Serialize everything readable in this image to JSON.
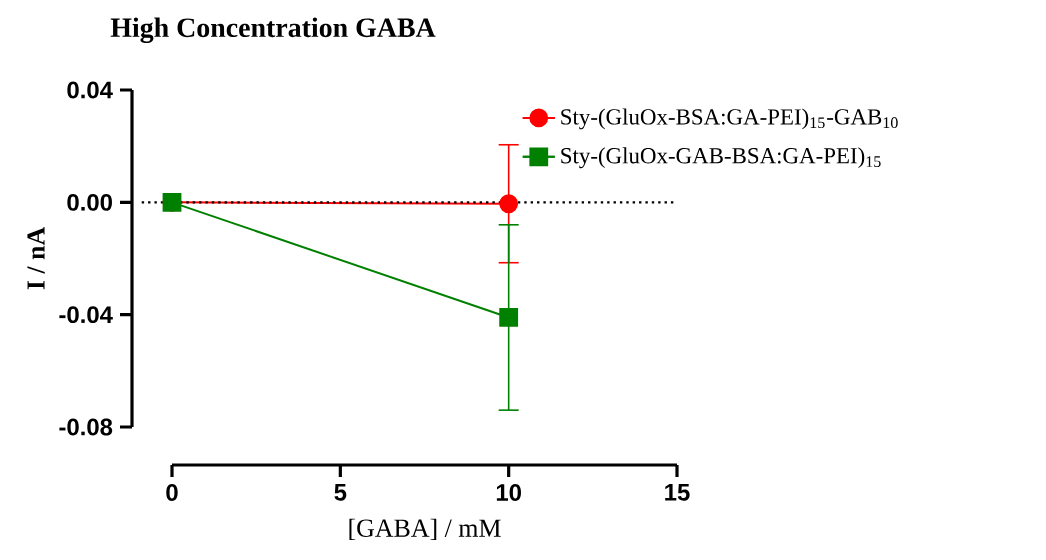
{
  "chart_data": {
    "type": "line",
    "title": "High Concentration GABA",
    "xlabel": "[GABA] / mM",
    "ylabel": "I / nA",
    "x": [
      0,
      10
    ],
    "series": [
      {
        "name": "Sty-(GluOx-BSA:GA-PEI)$_{15}$-GAB$_{10}$",
        "color": "#ff0000",
        "marker": "circle",
        "values": [
          0,
          -0.0005
        ],
        "errors": [
          null,
          0.021
        ]
      },
      {
        "name": "Sty-(GluOx-GAB-BSA:GA-PEI)$_{15}$",
        "color": "#008000",
        "marker": "square",
        "values": [
          0,
          -0.041
        ],
        "errors": [
          null,
          0.033
        ]
      }
    ],
    "xlim": [
      0,
      15
    ],
    "xticks": [
      0,
      5,
      10,
      15
    ],
    "ylim": [
      -0.08,
      0.04
    ],
    "yticks": [
      {
        "value": -0.08,
        "label": "-0.08"
      },
      {
        "value": -0.04,
        "label": "-0.04"
      },
      {
        "value": 0,
        "label": "0.00"
      },
      {
        "value": 0.04,
        "label": "0.04"
      }
    ],
    "ref_lines": [
      {
        "axis": "y",
        "value": 0,
        "color": "#000000",
        "line_style": "dotted"
      }
    ],
    "grid": false,
    "legend": "top right",
    "line_style": "solid"
  }
}
